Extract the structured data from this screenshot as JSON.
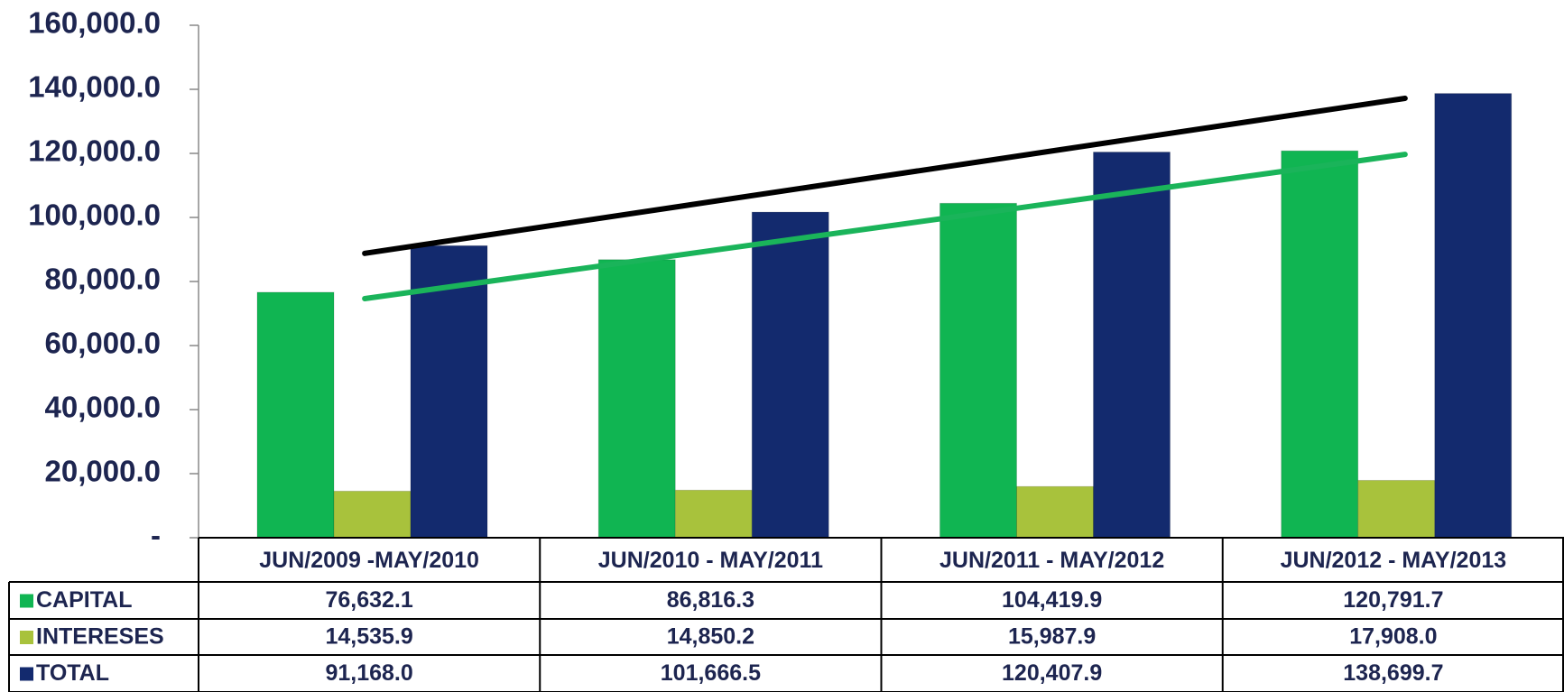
{
  "chart_data": {
    "type": "bar",
    "categories": [
      "JUN/2009 -MAY/2010",
      "JUN/2010 - MAY/2011",
      "JUN/2011 - MAY/2012",
      "JUN/2012 - MAY/2013"
    ],
    "series": [
      {
        "name": "CAPITAL",
        "color": "#10b552",
        "values": [
          76632.1,
          86816.3,
          104419.9,
          120791.7
        ],
        "value_labels": [
          "76,632.1",
          "86,816.3",
          "104,419.9",
          "120,791.7"
        ],
        "trendline": true,
        "trendline_color": "#1ab45a"
      },
      {
        "name": "INTERESES",
        "color": "#a8c23c",
        "values": [
          14535.9,
          14850.2,
          15987.9,
          17908.0
        ],
        "value_labels": [
          "14,535.9",
          "14,850.2",
          "15,987.9",
          "17,908.0"
        ],
        "trendline": false
      },
      {
        "name": "TOTAL",
        "color": "#132a6e",
        "values": [
          91168.0,
          101666.5,
          120407.9,
          138699.7
        ],
        "value_labels": [
          "91,168.0",
          "101,666.5",
          "120,407.9",
          "138,699.7"
        ],
        "trendline": true,
        "trendline_color": "#000000"
      }
    ],
    "ylim": [
      0,
      160000
    ],
    "yticks": [
      {
        "value": 0,
        "label": "-"
      },
      {
        "value": 20000,
        "label": "20,000.0"
      },
      {
        "value": 40000,
        "label": "40,000.0"
      },
      {
        "value": 60000,
        "label": "60,000.0"
      },
      {
        "value": 80000,
        "label": "80,000.0"
      },
      {
        "value": 100000,
        "label": "100,000.0"
      },
      {
        "value": 120000,
        "label": "120,000.0"
      },
      {
        "value": 140000,
        "label": "140,000.0"
      },
      {
        "value": 160000,
        "label": "160,000.0"
      }
    ],
    "legend": "table"
  }
}
